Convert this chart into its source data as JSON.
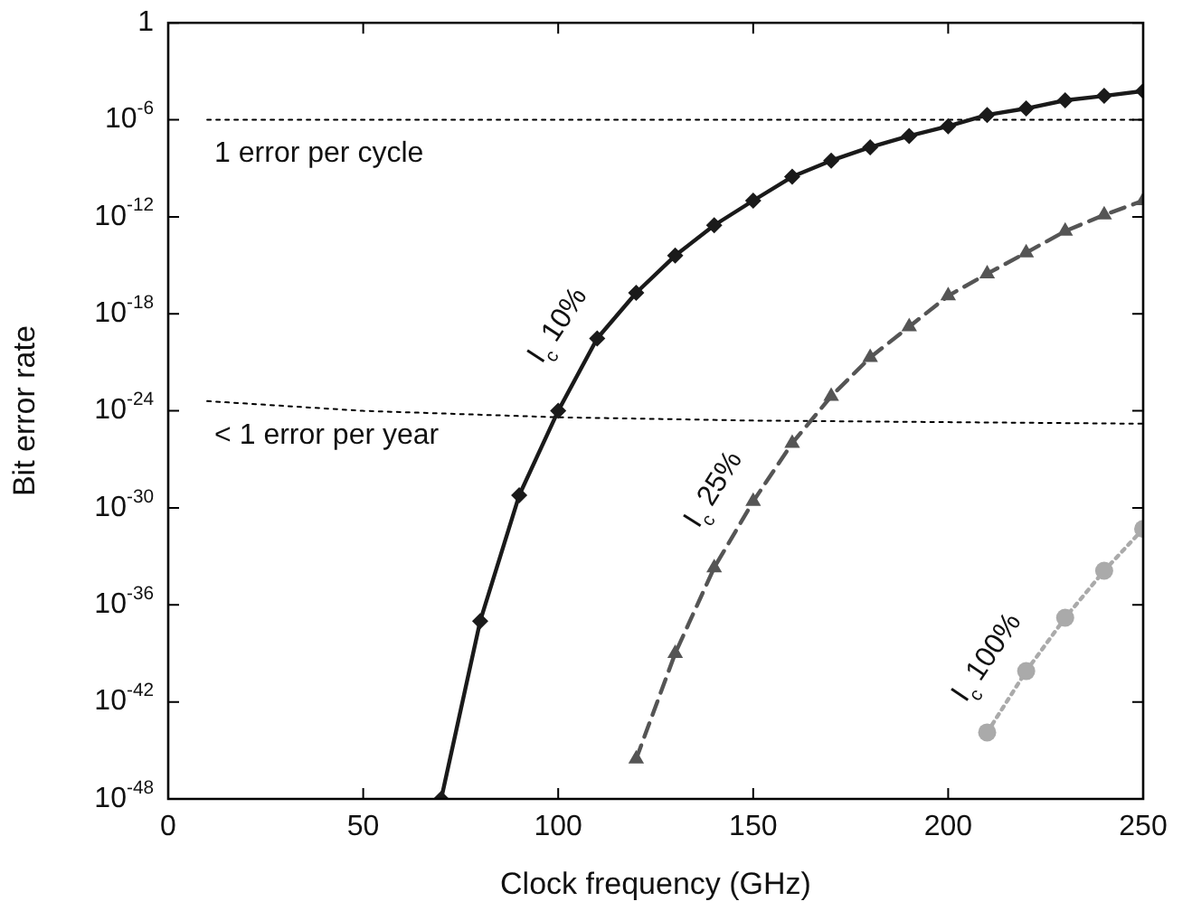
{
  "chart_data": {
    "type": "line",
    "xlabel": "Clock frequency (GHz)",
    "ylabel": "Bit error rate",
    "log": "y",
    "grid": false,
    "legend": false,
    "xlim": [
      0,
      250
    ],
    "xticks": [
      0,
      50,
      100,
      150,
      200,
      250
    ],
    "ylim": [
      1e-48,
      1
    ],
    "yticks": [
      {
        "value": 1e-48,
        "label": "10$^{-48}$"
      },
      {
        "value": 1e-42,
        "label": "10$^{-42}$"
      },
      {
        "value": 1e-36,
        "label": "10$^{-36}$"
      },
      {
        "value": 1e-30,
        "label": "10$^{-30}$"
      },
      {
        "value": 1e-24,
        "label": "10$^{-24}$"
      },
      {
        "value": 1e-18,
        "label": "10$^{-18}$"
      },
      {
        "value": 1e-12,
        "label": "10$^{-12}$"
      },
      {
        "value": 1e-06,
        "label": "10$^{-6}$"
      },
      1
    ],
    "series": [
      {
        "name": "I$_{c}$ 10%",
        "color": "#1a1a1a",
        "marker": "diamond",
        "line_style": "solid",
        "x": [
          70,
          80,
          90,
          100,
          110,
          120,
          130,
          140,
          150,
          160,
          170,
          180,
          190,
          200,
          210,
          220,
          230,
          240,
          250
        ],
        "values": [
          1e-48,
          1e-37,
          6e-30,
          1e-24,
          3e-20,
          2e-17,
          4e-15,
          3e-13,
          1e-11,
          3e-10,
          3e-09,
          2e-08,
          1e-07,
          4e-07,
          2e-06,
          5e-06,
          1.6e-05,
          3e-05,
          6e-05
        ]
      },
      {
        "name": "I$_{c}$ 25%",
        "color": "#555555",
        "marker": "triangle",
        "line_style": "dashed",
        "x": [
          120,
          130,
          140,
          150,
          160,
          170,
          180,
          190,
          200,
          210,
          220,
          230,
          240,
          250
        ],
        "values": [
          3e-46,
          1e-39,
          2e-34,
          2.5e-30,
          1e-26,
          8e-24,
          2e-21,
          1.6e-19,
          1.3e-17,
          3e-16,
          6e-15,
          1.3e-13,
          1.3e-12,
          1e-11
        ]
      },
      {
        "name": "I$_{c}$ 100%",
        "color": "#aaaaaa",
        "marker": "circle",
        "line_style": "dotted",
        "x": [
          210,
          220,
          230,
          240,
          250
        ],
        "values": [
          1.3e-44,
          8e-41,
          1.6e-37,
          1.3e-34,
          5e-32
        ]
      },
      {
        "color": "#000000",
        "marker": "none",
        "line_style": "dotted",
        "x": [
          10,
          250
        ],
        "values": [
          1e-06,
          1e-06
        ]
      },
      {
        "color": "#000000",
        "marker": "none",
        "line_style": "dotted",
        "x": [
          10,
          50,
          100,
          150,
          200,
          250
        ],
        "values": [
          4e-24,
          1e-24,
          4e-25,
          2.5e-25,
          2e-25,
          1.6e-25
        ]
      }
    ],
    "annotations": [
      {
        "text": "1 error per cycle",
        "x": 10,
        "y": 1e-06
      },
      {
        "text": "< 1 error per year",
        "x": 10,
        "y": 4e-24
      }
    ]
  }
}
